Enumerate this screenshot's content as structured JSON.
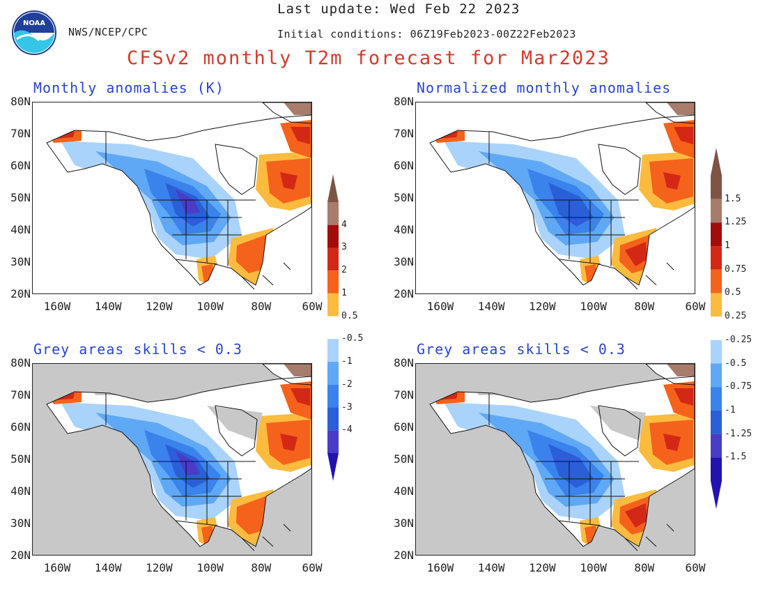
{
  "header": {
    "org": "NWS/NCEP/CPC",
    "last_update": "Last update: Wed Feb 22 2023",
    "initial_conditions": "Initial conditions: 06Z19Feb2023-00Z22Feb2023",
    "title": "CFSv2 monthly T2m forecast for Mar2023",
    "logo_text": "NOAA"
  },
  "axes": {
    "lat_labels": [
      "80N",
      "70N",
      "60N",
      "50N",
      "40N",
      "30N",
      "20N"
    ],
    "lon_labels": [
      "160W",
      "140W",
      "120W",
      "100W",
      "80W",
      "60W"
    ]
  },
  "panels": [
    {
      "title": "Monthly anomalies (K)",
      "grey_mask": false
    },
    {
      "title": "Normalized monthly anomalies",
      "grey_mask": false
    },
    {
      "title": "Grey areas skills < 0.3",
      "grey_mask": true
    },
    {
      "title": "Grey areas skills < 0.3",
      "grey_mask": true
    }
  ],
  "colorbars": [
    {
      "warm_labels": [
        "4",
        "3",
        "2",
        "1",
        "0.5"
      ],
      "cool_labels": [
        "-0.5",
        "-1",
        "-2",
        "-3",
        "-4"
      ]
    },
    {
      "warm_labels": [
        "1.5",
        "1.25",
        "1",
        "0.75",
        "0.5",
        "0.25"
      ],
      "cool_labels": [
        "-0.25",
        "-0.5",
        "-0.75",
        "-1",
        "-1.25",
        "-1.5"
      ]
    }
  ],
  "colors": {
    "warm": [
      "#fbbb3f",
      "#f5621c",
      "#d42816",
      "#a30c0c",
      "#a87c6c",
      "#7e5545"
    ],
    "cool": [
      "#a9d3fb",
      "#5fa8f5",
      "#3a82ec",
      "#2a5fd8",
      "#4a3cc6",
      "#2412b0"
    ],
    "grey_mask": "#c8c8c8",
    "title_red": "#d33a2c",
    "panel_title_blue": "#2a44c8"
  }
}
